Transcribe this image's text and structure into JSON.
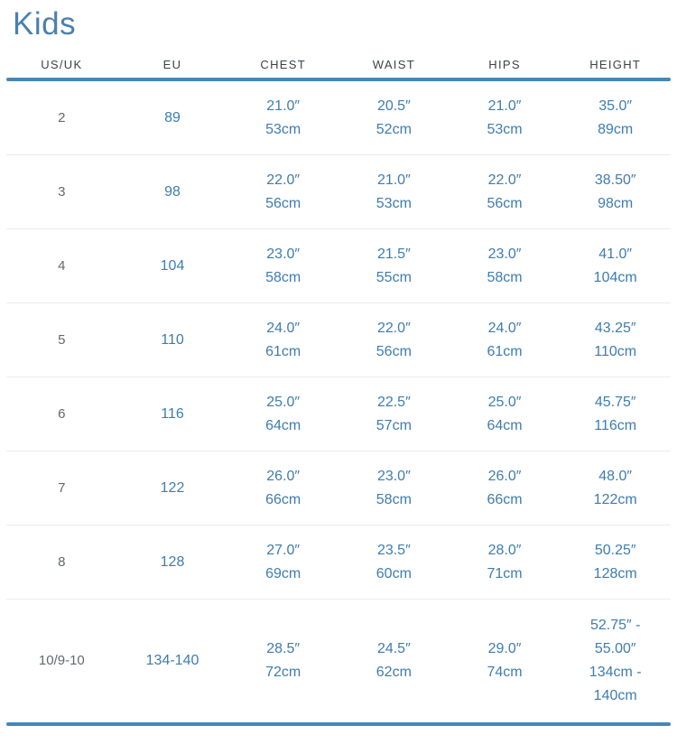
{
  "title": "Kids",
  "colors": {
    "accent_line": "#4687b7",
    "value_blue": "#3e7cb0",
    "title_blue": "#4a80ae",
    "header_text": "#3c4249",
    "muted_text": "#63686f",
    "divider": "#ececec"
  },
  "table": {
    "headers": [
      "US/UK",
      "EU",
      "CHEST",
      "WAIST",
      "HIPS",
      "HEIGHT"
    ],
    "column_keys": [
      "us_uk",
      "eu",
      "chest",
      "waist",
      "hips",
      "height"
    ],
    "rows": [
      {
        "us_uk": "2",
        "eu": "89",
        "chest": [
          "21.0″",
          "53cm"
        ],
        "waist": [
          "20.5″",
          "52cm"
        ],
        "hips": [
          "21.0″",
          "53cm"
        ],
        "height": [
          "35.0″",
          "89cm"
        ]
      },
      {
        "us_uk": "3",
        "eu": "98",
        "chest": [
          "22.0″",
          "56cm"
        ],
        "waist": [
          "21.0″",
          "53cm"
        ],
        "hips": [
          "22.0″",
          "56cm"
        ],
        "height": [
          "38.50″",
          "98cm"
        ]
      },
      {
        "us_uk": "4",
        "eu": "104",
        "chest": [
          "23.0″",
          "58cm"
        ],
        "waist": [
          "21.5″",
          "55cm"
        ],
        "hips": [
          "23.0″",
          "58cm"
        ],
        "height": [
          "41.0″",
          "104cm"
        ]
      },
      {
        "us_uk": "5",
        "eu": "110",
        "chest": [
          "24.0″",
          "61cm"
        ],
        "waist": [
          "22.0″",
          "56cm"
        ],
        "hips": [
          "24.0″",
          "61cm"
        ],
        "height": [
          "43.25″",
          "110cm"
        ]
      },
      {
        "us_uk": "6",
        "eu": "116",
        "chest": [
          "25.0″",
          "64cm"
        ],
        "waist": [
          "22.5″",
          "57cm"
        ],
        "hips": [
          "25.0″",
          "64cm"
        ],
        "height": [
          "45.75″",
          "116cm"
        ]
      },
      {
        "us_uk": "7",
        "eu": "122",
        "chest": [
          "26.0″",
          "66cm"
        ],
        "waist": [
          "23.0″",
          "58cm"
        ],
        "hips": [
          "26.0″",
          "66cm"
        ],
        "height": [
          "48.0″",
          "122cm"
        ]
      },
      {
        "us_uk": "8",
        "eu": "128",
        "chest": [
          "27.0″",
          "69cm"
        ],
        "waist": [
          "23.5″",
          "60cm"
        ],
        "hips": [
          "28.0″",
          "71cm"
        ],
        "height": [
          "50.25″",
          "128cm"
        ]
      },
      {
        "us_uk": "10/9-10",
        "eu": "134-140",
        "chest": [
          "28.5″",
          "72cm"
        ],
        "waist": [
          "24.5″",
          "62cm"
        ],
        "hips": [
          "29.0″",
          "74cm"
        ],
        "height": [
          "52.75″ -",
          "55.00″",
          "134cm -",
          "140cm"
        ]
      }
    ]
  }
}
